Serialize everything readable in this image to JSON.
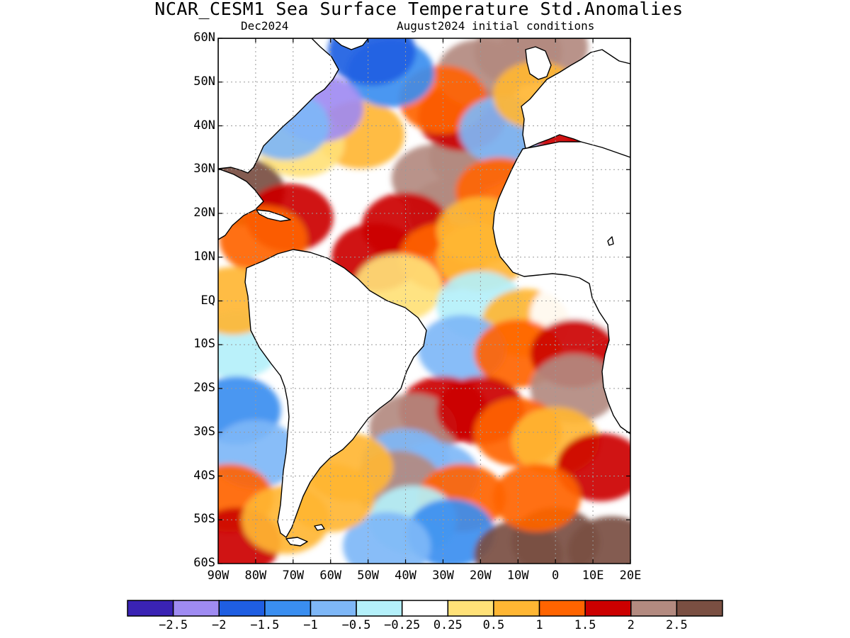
{
  "header": {
    "title": "NCAR_CESM1 Sea Surface Temperature Std.Anomalies",
    "forecast_month": "Dec2024",
    "initial_conditions": "August2024 initial conditions"
  },
  "map": {
    "region": "Atlantic Ocean",
    "lat_range": [
      -60,
      60
    ],
    "lon_range": [
      -90,
      20
    ],
    "lat_labels": [
      {
        "lat": 60,
        "text": "60N"
      },
      {
        "lat": 50,
        "text": "50N"
      },
      {
        "lat": 40,
        "text": "40N"
      },
      {
        "lat": 30,
        "text": "30N"
      },
      {
        "lat": 20,
        "text": "20N"
      },
      {
        "lat": 10,
        "text": "10N"
      },
      {
        "lat": 0,
        "text": "EQ"
      },
      {
        "lat": -10,
        "text": "10S"
      },
      {
        "lat": -20,
        "text": "20S"
      },
      {
        "lat": -30,
        "text": "30S"
      },
      {
        "lat": -40,
        "text": "40S"
      },
      {
        "lat": -50,
        "text": "50S"
      },
      {
        "lat": -60,
        "text": "60S"
      }
    ],
    "lon_labels": [
      {
        "lon": -90,
        "text": "90W"
      },
      {
        "lon": -80,
        "text": "80W"
      },
      {
        "lon": -70,
        "text": "70W"
      },
      {
        "lon": -60,
        "text": "60W"
      },
      {
        "lon": -50,
        "text": "50W"
      },
      {
        "lon": -40,
        "text": "40W"
      },
      {
        "lon": -30,
        "text": "30W"
      },
      {
        "lon": -20,
        "text": "20W"
      },
      {
        "lon": -10,
        "text": "10W"
      },
      {
        "lon": 0,
        "text": "0"
      },
      {
        "lon": 10,
        "text": "10E"
      },
      {
        "lon": 20,
        "text": "20E"
      }
    ],
    "grid": "dotted",
    "anomaly_regions": [
      {
        "lon": -32,
        "lat": 28,
        "value": 2.2
      },
      {
        "lon": -28,
        "lat": 20,
        "value": 2.3
      },
      {
        "lon": -40,
        "lat": 17,
        "value": 1.8
      },
      {
        "lon": -22,
        "lat": 33,
        "value": 2.0
      },
      {
        "lon": -15,
        "lat": 35,
        "value": 2.2
      },
      {
        "lon": -25,
        "lat": 42,
        "value": 1.6
      },
      {
        "lon": -20,
        "lat": 52,
        "value": 2.3
      },
      {
        "lon": -10,
        "lat": 57,
        "value": 2.2
      },
      {
        "lon": -3,
        "lat": 58,
        "value": 2.0
      },
      {
        "lon": -30,
        "lat": 46,
        "value": 1.2
      },
      {
        "lon": -52,
        "lat": 38,
        "value": 0.6
      },
      {
        "lon": -68,
        "lat": 36,
        "value": 0.3
      },
      {
        "lon": -44,
        "lat": 52,
        "value": -1.2
      },
      {
        "lon": -49,
        "lat": 57,
        "value": -1.8
      },
      {
        "lon": -63,
        "lat": 44,
        "value": -2.2
      },
      {
        "lon": -72,
        "lat": 40,
        "value": -1.0
      },
      {
        "lon": -14,
        "lat": 39,
        "value": -0.8
      },
      {
        "lon": -84,
        "lat": 25,
        "value": 2.6
      },
      {
        "lon": -71,
        "lat": 19,
        "value": 1.5
      },
      {
        "lon": -78,
        "lat": 14,
        "value": 1.0
      },
      {
        "lon": -48,
        "lat": 10,
        "value": 1.6
      },
      {
        "lon": -30,
        "lat": 10,
        "value": 1.2
      },
      {
        "lon": -20,
        "lat": 10,
        "value": 0.6
      },
      {
        "lon": -42,
        "lat": 3,
        "value": 0.4
      },
      {
        "lon": -20,
        "lat": -1,
        "value": -0.3
      },
      {
        "lon": -8,
        "lat": -5,
        "value": 0.5
      },
      {
        "lon": 5,
        "lat": -3,
        "value": 0.2
      },
      {
        "lon": -25,
        "lat": -11,
        "value": -0.7
      },
      {
        "lon": -10,
        "lat": -12,
        "value": 1.0
      },
      {
        "lon": 5,
        "lat": -12,
        "value": 1.5
      },
      {
        "lon": 5,
        "lat": -20,
        "value": 2.2
      },
      {
        "lon": -30,
        "lat": -25,
        "value": 1.8
      },
      {
        "lon": -38,
        "lat": -29,
        "value": 2.4
      },
      {
        "lon": -20,
        "lat": -25,
        "value": 1.5
      },
      {
        "lon": -10,
        "lat": -30,
        "value": 1.0
      },
      {
        "lon": 0,
        "lat": -32,
        "value": 0.6
      },
      {
        "lon": 12,
        "lat": -38,
        "value": 1.6
      },
      {
        "lon": -40,
        "lat": -37,
        "value": -0.6
      },
      {
        "lon": -32,
        "lat": -40,
        "value": -0.9
      },
      {
        "lon": -42,
        "lat": -42,
        "value": 2.2
      },
      {
        "lon": -25,
        "lat": -45,
        "value": 1.0
      },
      {
        "lon": -38,
        "lat": -50,
        "value": -0.5
      },
      {
        "lon": -28,
        "lat": -53,
        "value": -1.2
      },
      {
        "lon": -45,
        "lat": -56,
        "value": -0.6
      },
      {
        "lon": 0,
        "lat": -55,
        "value": 2.6
      },
      {
        "lon": -10,
        "lat": -58,
        "value": 2.5
      },
      {
        "lon": 15,
        "lat": -57,
        "value": 2.5
      },
      {
        "lon": -5,
        "lat": -45,
        "value": 1.4
      },
      {
        "lon": -85,
        "lat": -10,
        "value": -0.4
      },
      {
        "lon": -85,
        "lat": -25,
        "value": -1.1
      },
      {
        "lon": -80,
        "lat": -35,
        "value": -0.9
      },
      {
        "lon": -87,
        "lat": -45,
        "value": 1.2
      },
      {
        "lon": -85,
        "lat": -55,
        "value": 1.6
      },
      {
        "lon": -72,
        "lat": -50,
        "value": 0.7
      },
      {
        "lon": -86,
        "lat": 0,
        "value": 0.6
      },
      {
        "lon": -60,
        "lat": -45,
        "value": 0.7
      },
      {
        "lon": -55,
        "lat": -38,
        "value": 0.8
      },
      {
        "lon": -5,
        "lat": 47,
        "value": 0.6
      },
      {
        "lon": 5,
        "lat": 40,
        "value": 1.8
      },
      {
        "lon": 15,
        "lat": 38,
        "value": 1.6
      },
      {
        "lon": -15,
        "lat": 25,
        "value": 1.4
      },
      {
        "lon": -20,
        "lat": 16,
        "value": 0.9
      }
    ]
  },
  "colorbar": {
    "colors": [
      "#3a23b4",
      "#9f8bf2",
      "#1f5ee2",
      "#3a8ef0",
      "#7eb7f7",
      "#b4f0fa",
      "#ffffff",
      "#ffe178",
      "#ffb633",
      "#ff6400",
      "#cc0000",
      "#b38a80",
      "#7a4f42"
    ],
    "bounds": [
      -2.5,
      -2,
      -1.5,
      -1,
      -0.5,
      -0.25,
      0.25,
      0.5,
      1,
      1.5,
      2,
      2.5
    ],
    "labels": [
      "−2.5",
      "−2",
      "−1.5",
      "−1",
      "−0.5",
      "−0.25",
      "0.25",
      "0.5",
      "1",
      "1.5",
      "2",
      "2.5"
    ]
  }
}
